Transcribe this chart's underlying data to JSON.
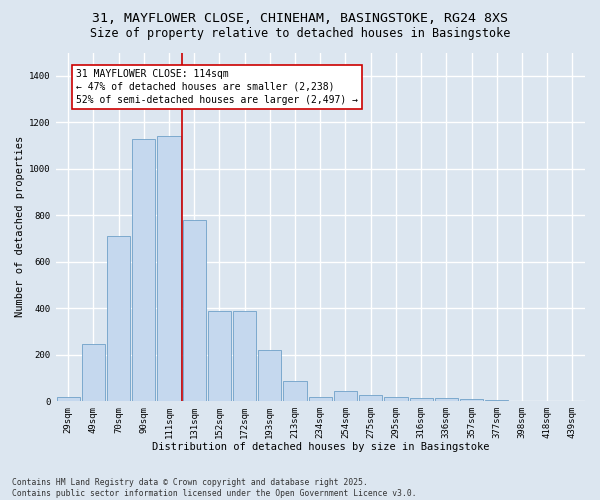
{
  "title_line1": "31, MAYFLOWER CLOSE, CHINEHAM, BASINGSTOKE, RG24 8XS",
  "title_line2": "Size of property relative to detached houses in Basingstoke",
  "xlabel": "Distribution of detached houses by size in Basingstoke",
  "ylabel": "Number of detached properties",
  "footnote": "Contains HM Land Registry data © Crown copyright and database right 2025.\nContains public sector information licensed under the Open Government Licence v3.0.",
  "categories": [
    "29sqm",
    "49sqm",
    "70sqm",
    "90sqm",
    "111sqm",
    "131sqm",
    "152sqm",
    "172sqm",
    "193sqm",
    "213sqm",
    "234sqm",
    "254sqm",
    "275sqm",
    "295sqm",
    "316sqm",
    "336sqm",
    "357sqm",
    "377sqm",
    "398sqm",
    "418sqm",
    "439sqm"
  ],
  "values": [
    20,
    245,
    710,
    1130,
    1140,
    780,
    390,
    390,
    220,
    85,
    20,
    45,
    28,
    18,
    12,
    12,
    8,
    4,
    2,
    1,
    0
  ],
  "bar_color": "#c5d8ee",
  "bar_edge_color": "#6fa0c8",
  "vline_x": 4.5,
  "vline_color": "#cc0000",
  "annotation_text": "31 MAYFLOWER CLOSE: 114sqm\n← 47% of detached houses are smaller (2,238)\n52% of semi-detached houses are larger (2,497) →",
  "annotation_box_color": "white",
  "annotation_box_edge": "#cc0000",
  "ylim": [
    0,
    1500
  ],
  "yticks": [
    0,
    200,
    400,
    600,
    800,
    1000,
    1200,
    1400
  ],
  "bg_color": "#dce6f0",
  "grid_color": "white",
  "title_fontsize": 9.5,
  "subtitle_fontsize": 8.5,
  "axis_label_fontsize": 7.5,
  "tick_fontsize": 6.5,
  "annotation_fontsize": 7,
  "ylabel_fontsize": 7.5
}
